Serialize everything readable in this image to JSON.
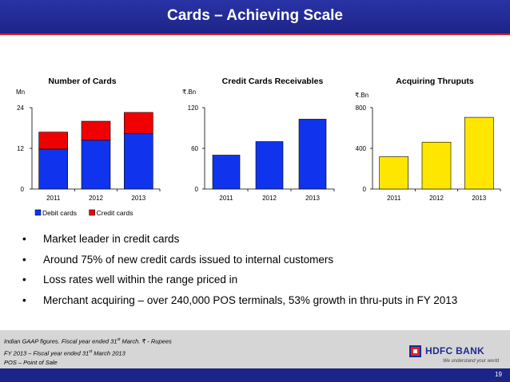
{
  "slide": {
    "title": "Cards – Achieving Scale",
    "page_number": "19"
  },
  "chart_data": [
    {
      "type": "bar",
      "stacked": true,
      "title": "Number of Cards",
      "ylabel": "Mn",
      "categories": [
        "2011",
        "2012",
        "2013"
      ],
      "yticks": [
        "0",
        "12",
        "24"
      ],
      "ylim": [
        0,
        24
      ],
      "series": [
        {
          "name": "Debit cards",
          "values": [
            11.8,
            14.4,
            16.3
          ],
          "color": "#1034ee"
        },
        {
          "name": "Credit cards",
          "values": [
            5.0,
            5.6,
            6.3
          ],
          "color": "#f00000"
        }
      ],
      "legend": "bottom"
    },
    {
      "type": "bar",
      "title": "Credit Cards Receivables",
      "ylabel": "₹.Bn",
      "categories": [
        "2011",
        "2012",
        "2013"
      ],
      "yticks": [
        "0",
        "60",
        "120"
      ],
      "ylim": [
        0,
        120
      ],
      "series": [
        {
          "name": "Credit Cards Receivables",
          "values": [
            50,
            70,
            103
          ],
          "color": "#1034ee"
        }
      ]
    },
    {
      "type": "bar",
      "title": "Acquiring Thruputs",
      "ylabel": "₹.Bn",
      "categories": [
        "2011",
        "2012",
        "2013"
      ],
      "yticks": [
        "0",
        "400",
        "800"
      ],
      "ylim": [
        0,
        800
      ],
      "series": [
        {
          "name": "Acquiring Thruputs",
          "values": [
            318,
            461,
            705
          ],
          "color": "#ffe600"
        }
      ]
    }
  ],
  "bullets": [
    "Market leader in credit cards",
    "Around 75% of new credit cards issued to internal customers",
    "Loss rates well within the range priced in",
    "Merchant acquiring – over 240,000 POS terminals, 53% growth in thru-puts in FY 2013"
  ],
  "bullet_glyph": "•",
  "footer": {
    "note1_prefix": "Indian GAAP figures. Fiscal year ended 31",
    "note1_sup": "st",
    "note1_suffix": " March. ₹ - Rupees",
    "note2_prefix": "FY 2013 – Fiscal year ended 31",
    "note2_sup": "st",
    "note2_suffix": " March 2013",
    "note3": "POS – Point of Sale"
  },
  "logo": {
    "name": "HDFC BANK",
    "tagline": "We understand your world"
  }
}
